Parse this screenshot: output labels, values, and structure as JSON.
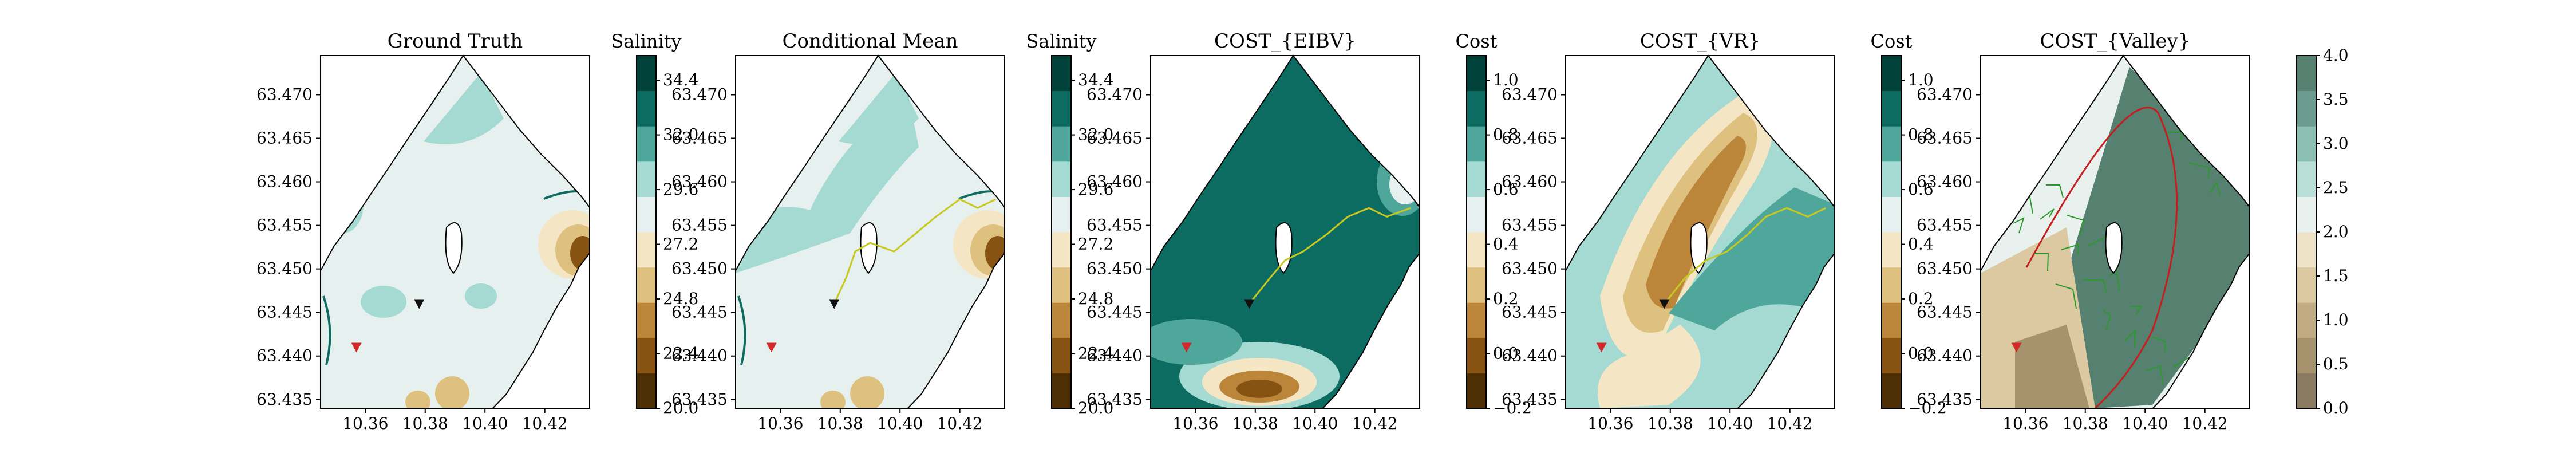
{
  "chart_data": [
    {
      "type": "heatmap",
      "title": "Ground Truth",
      "colorbar_label": "Salinity",
      "colorbar_ticks": [
        "20.0",
        "22.4",
        "24.8",
        "27.2",
        "29.6",
        "32.0",
        "34.4"
      ],
      "x_ticks": [
        "10.36",
        "10.38",
        "10.40",
        "10.42"
      ],
      "y_ticks": [
        "63.435",
        "63.440",
        "63.445",
        "63.450",
        "63.455",
        "63.460",
        "63.465",
        "63.470"
      ],
      "xlim": [
        10.345,
        10.435
      ],
      "ylim": [
        63.434,
        63.4745
      ],
      "markers": [
        {
          "x": 10.357,
          "y": 63.441,
          "color": "#d62728"
        },
        {
          "x": 10.378,
          "y": 63.446,
          "color": "#111111"
        }
      ]
    },
    {
      "type": "heatmap",
      "title": "Conditional Mean",
      "colorbar_label": "Salinity",
      "colorbar_ticks": [
        "20.0",
        "22.4",
        "24.8",
        "27.2",
        "29.6",
        "32.0",
        "34.4"
      ],
      "x_ticks": [
        "10.36",
        "10.38",
        "10.40",
        "10.42"
      ],
      "y_ticks": [
        "63.435",
        "63.440",
        "63.445",
        "63.450",
        "63.455",
        "63.460",
        "63.465",
        "63.470"
      ],
      "xlim": [
        10.345,
        10.435
      ],
      "ylim": [
        63.434,
        63.4745
      ],
      "markers": [
        {
          "x": 10.357,
          "y": 63.441,
          "color": "#d62728"
        },
        {
          "x": 10.378,
          "y": 63.446,
          "color": "#111111"
        }
      ],
      "path": [
        [
          10.378,
          63.446
        ],
        [
          10.382,
          63.449
        ],
        [
          10.385,
          63.452
        ],
        [
          10.39,
          63.453
        ],
        [
          10.398,
          63.452
        ],
        [
          10.405,
          63.454
        ],
        [
          10.412,
          63.456
        ],
        [
          10.42,
          63.458
        ],
        [
          10.426,
          63.457
        ],
        [
          10.432,
          63.458
        ]
      ]
    },
    {
      "type": "heatmap",
      "title": "COST_{EIBV}",
      "colorbar_label": "Cost",
      "colorbar_ticks": [
        "−0.2",
        "0.0",
        "0.2",
        "0.4",
        "0.6",
        "0.8",
        "1.0"
      ],
      "x_ticks": [
        "10.36",
        "10.38",
        "10.40",
        "10.42"
      ],
      "y_ticks": [
        "63.435",
        "63.440",
        "63.445",
        "63.450",
        "63.455",
        "63.460",
        "63.465",
        "63.470"
      ],
      "xlim": [
        10.345,
        10.435
      ],
      "ylim": [
        63.434,
        63.4745
      ],
      "markers": [
        {
          "x": 10.357,
          "y": 63.441,
          "color": "#d62728"
        },
        {
          "x": 10.378,
          "y": 63.446,
          "color": "#111111"
        }
      ],
      "path": [
        [
          10.378,
          63.446
        ],
        [
          10.385,
          63.449
        ],
        [
          10.39,
          63.451
        ],
        [
          10.396,
          63.452
        ],
        [
          10.404,
          63.454
        ],
        [
          10.411,
          63.456
        ],
        [
          10.418,
          63.457
        ],
        [
          10.424,
          63.456
        ],
        [
          10.432,
          63.457
        ]
      ]
    },
    {
      "type": "heatmap",
      "title": "COST_{VR}",
      "colorbar_label": "Cost",
      "colorbar_ticks": [
        "−0.2",
        "0.0",
        "0.2",
        "0.4",
        "0.6",
        "0.8",
        "1.0"
      ],
      "x_ticks": [
        "10.36",
        "10.38",
        "10.40",
        "10.42"
      ],
      "y_ticks": [
        "63.435",
        "63.440",
        "63.445",
        "63.450",
        "63.455",
        "63.460",
        "63.465",
        "63.470"
      ],
      "xlim": [
        10.345,
        10.435
      ],
      "ylim": [
        63.434,
        63.4745
      ],
      "markers": [
        {
          "x": 10.357,
          "y": 63.441,
          "color": "#d62728"
        },
        {
          "x": 10.378,
          "y": 63.446,
          "color": "#111111"
        }
      ],
      "path": [
        [
          10.378,
          63.446
        ],
        [
          10.385,
          63.449
        ],
        [
          10.392,
          63.451
        ],
        [
          10.399,
          63.452
        ],
        [
          10.406,
          63.454
        ],
        [
          10.412,
          63.456
        ],
        [
          10.419,
          63.457
        ],
        [
          10.426,
          63.456
        ],
        [
          10.432,
          63.457
        ]
      ]
    },
    {
      "type": "heatmap",
      "title": "COST_{Valley}",
      "colorbar_label": "",
      "colorbar_ticks": [
        "0.0",
        "0.5",
        "1.0",
        "1.5",
        "2.0",
        "2.5",
        "3.0",
        "3.5",
        "4.0"
      ],
      "x_ticks": [
        "10.36",
        "10.38",
        "10.40",
        "10.42"
      ],
      "y_ticks": [
        "63.435",
        "63.440",
        "63.445",
        "63.450",
        "63.455",
        "63.460",
        "63.465",
        "63.470"
      ],
      "xlim": [
        10.345,
        10.435
      ],
      "ylim": [
        63.434,
        63.4745
      ],
      "markers": [
        {
          "x": 10.357,
          "y": 63.441,
          "color": "#d62728"
        }
      ]
    }
  ],
  "colors": {
    "salinity_scale": [
      "#4d2f05",
      "#865313",
      "#bb853a",
      "#dfc17f",
      "#f4e6c4",
      "#e6f1ef",
      "#a4dad2",
      "#4fa69b",
      "#0c6c62",
      "#00413a"
    ],
    "cost_scale": [
      "#4d2f05",
      "#865313",
      "#bb853a",
      "#dfc17f",
      "#f4e6c4",
      "#e6f1ef",
      "#a4dad2",
      "#4fa69b",
      "#0c6c62",
      "#00413a"
    ],
    "valley_scale": [
      "#8a7b62",
      "#a6926c",
      "#c2ab83",
      "#dcc9a2",
      "#efe3c7",
      "#e9f1ee",
      "#b9ded7",
      "#8cbfb4",
      "#6c9b92",
      "#56806f"
    ],
    "path": "#c8c820",
    "red_boundary": "#c41e1e",
    "green_tree": "#2a9a2a"
  }
}
